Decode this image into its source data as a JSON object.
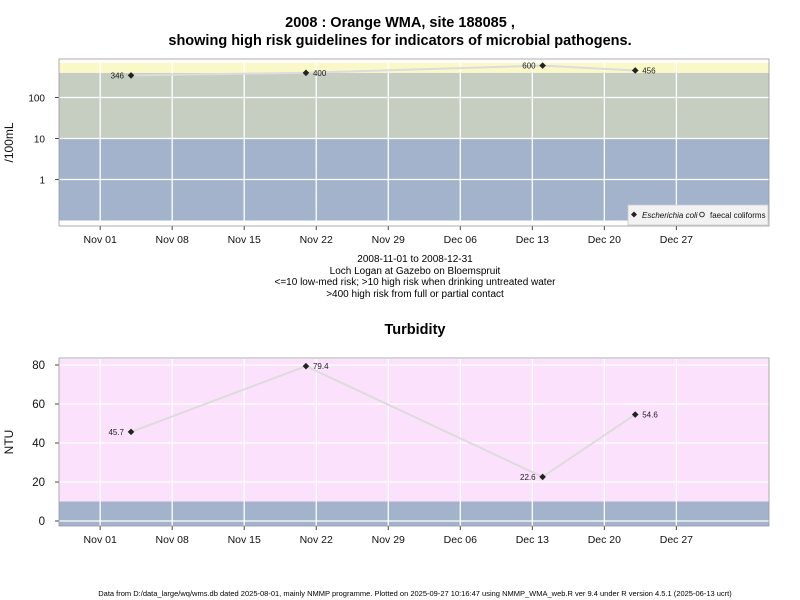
{
  "title": {
    "line1": "2008 : Orange WMA, site 188085 ,",
    "line2": "showing high risk guidelines for indicators of microbial pathogens."
  },
  "subtitle": {
    "line1": "2008-11-01 to 2008-12-31",
    "line2": "Loch Logan at Gazebo on Bloemspruit",
    "line3": "<=10 low-med risk; >10 high risk when drinking untreated water",
    "line4": ">400 high risk from full or partial contact"
  },
  "footer": "Data from D:/data_large/wq/wms.db dated 2025-08-01, mainly NMMP programme. Plotted on 2025-09-27 10:16:47 using NMMP_WMA_web.R ver 9.4 under R version 4.5.1 (2025-06-13 ucrt)",
  "colors": {
    "band_low": "#a3b3cc",
    "band_mid": "#c6cec2",
    "band_high": "#fbf8c8",
    "band_turb_high": "#fce1fc",
    "line": "#dcdcdc",
    "grid": "#ffffff",
    "frame": "#999999"
  },
  "chart_data": [
    {
      "type": "line",
      "scale": "log",
      "ylabel": "/100mL",
      "xlim": [
        "2008-10-28",
        "2009-01-05"
      ],
      "x_ticks": [
        "Nov 01",
        "Nov 08",
        "Nov 15",
        "Nov 22",
        "Nov 29",
        "Dec 06",
        "Dec 13",
        "Dec 20",
        "Dec 27"
      ],
      "y_ticks": [
        "1",
        "10",
        "100"
      ],
      "bands": [
        {
          "from": 0.1,
          "to": 10,
          "color": "#a3b3cc"
        },
        {
          "from": 10,
          "to": 400,
          "color": "#c6cec2"
        },
        {
          "from": 400,
          "to": 700,
          "color": "#fbf8c8"
        }
      ],
      "series": [
        {
          "name": "Escherichia coli",
          "marker": "diamond",
          "points": [
            {
              "x": "2008-11-04",
              "y": 346
            },
            {
              "x": "2008-11-21",
              "y": 400
            },
            {
              "x": "2008-12-14",
              "y": 600
            },
            {
              "x": "2008-12-23",
              "y": 456
            }
          ]
        }
      ],
      "legend": {
        "position": "bottom-right",
        "entries": [
          {
            "label": "Escherichia coli",
            "marker": "diamond",
            "italic": true
          },
          {
            "label": "faecal coliforms",
            "marker": "open-circle",
            "italic": false
          }
        ]
      }
    },
    {
      "type": "line",
      "title": "Turbidity",
      "ylabel": "NTU",
      "xlim": [
        "2008-10-28",
        "2009-01-05"
      ],
      "ylim": [
        -3,
        83
      ],
      "x_ticks": [
        "Nov 01",
        "Nov 08",
        "Nov 15",
        "Nov 22",
        "Nov 29",
        "Dec 06",
        "Dec 13",
        "Dec 20",
        "Dec 27"
      ],
      "y_ticks": [
        "0",
        "20",
        "40",
        "60",
        "80"
      ],
      "bands": [
        {
          "from": -3,
          "to": 10,
          "color": "#a3b3cc"
        },
        {
          "from": 10,
          "to": 83,
          "color": "#fce1fc"
        }
      ],
      "series": [
        {
          "marker": "diamond",
          "points": [
            {
              "x": "2008-11-04",
              "y": 45.7
            },
            {
              "x": "2008-11-21",
              "y": 79.4
            },
            {
              "x": "2008-12-14",
              "y": 22.6
            },
            {
              "x": "2008-12-23",
              "y": 54.6
            }
          ]
        }
      ]
    }
  ]
}
